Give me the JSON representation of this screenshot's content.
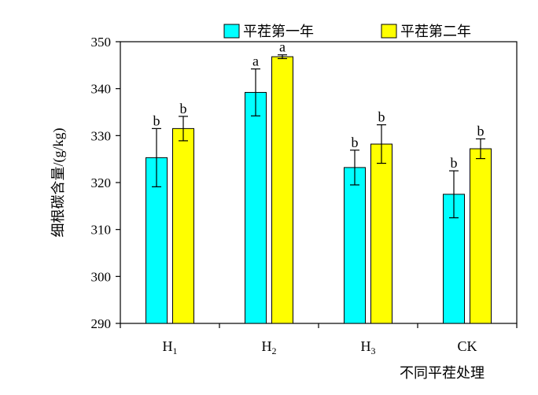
{
  "chart_data": {
    "type": "bar",
    "title": "",
    "xlabel": "不同平茬处理",
    "ylabel": "细根碳含量/(g/kg)",
    "ylim": [
      290,
      350
    ],
    "yticks": [
      290,
      300,
      310,
      320,
      330,
      340,
      350
    ],
    "categories": [
      {
        "base": "H",
        "sub": "1"
      },
      {
        "base": "H",
        "sub": "2"
      },
      {
        "base": "H",
        "sub": "3"
      },
      {
        "base": "CK",
        "sub": ""
      }
    ],
    "legend_position": "top",
    "grid": false,
    "series": [
      {
        "name": "平茬第一年",
        "color": "#00FFFF",
        "values": [
          325.3,
          339.2,
          323.2,
          317.5
        ],
        "errors": [
          6.2,
          5.0,
          3.7,
          5.0
        ],
        "labels": [
          "b",
          "a",
          "b",
          "b"
        ]
      },
      {
        "name": "平茬第二年",
        "color": "#FFFF00",
        "values": [
          331.5,
          346.8,
          328.2,
          327.2
        ],
        "errors": [
          2.6,
          0.4,
          4.1,
          2.1
        ],
        "labels": [
          "b",
          "a",
          "b",
          "b"
        ]
      }
    ]
  }
}
